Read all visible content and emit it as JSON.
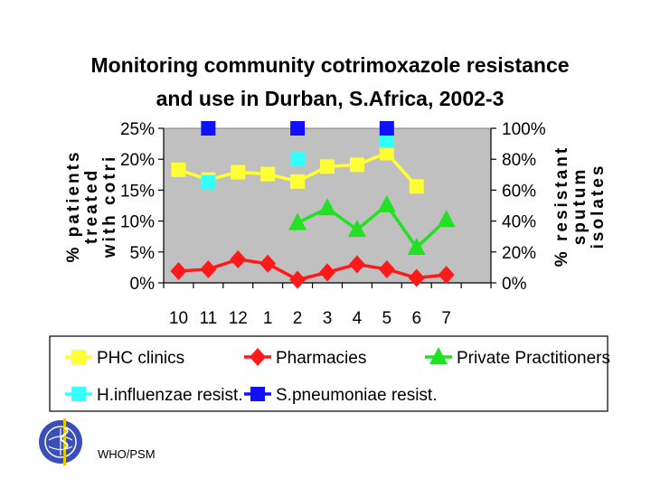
{
  "chart_data": {
    "type": "line",
    "title_lines": [
      "Monitoring community cotrimoxazole resistance",
      "and use in Durban, S.Africa, 2002-3"
    ],
    "categories": [
      "10",
      "11",
      "12",
      "1",
      "2",
      "3",
      "4",
      "5",
      "6",
      "7"
    ],
    "y_left": {
      "label_lines": [
        "% patients",
        "treated",
        "with cotri"
      ],
      "ticks": [
        "0%",
        "5%",
        "10%",
        "15%",
        "20%",
        "25%"
      ],
      "range": [
        0,
        25
      ]
    },
    "y_right": {
      "label_lines": [
        "% resistant",
        "sputum",
        "isolates"
      ],
      "ticks": [
        "0%",
        "20%",
        "40%",
        "60%",
        "80%",
        "100%"
      ],
      "range": [
        0,
        100
      ]
    },
    "series": [
      {
        "name": "PHC clinics",
        "axis": "left",
        "color": "#ffff33",
        "marker": "square",
        "line": true,
        "values": [
          18.3,
          16.7,
          17.9,
          17.6,
          16.4,
          18.8,
          19.1,
          21.0,
          15.6,
          null
        ]
      },
      {
        "name": "Pharmacies",
        "axis": "left",
        "color": "#ff1a1a",
        "marker": "diamond",
        "line": true,
        "values": [
          1.9,
          2.2,
          3.8,
          3.1,
          0.5,
          1.7,
          3.0,
          2.2,
          0.8,
          1.3
        ]
      },
      {
        "name": "Private Practitioners",
        "axis": "left",
        "color": "#22e022",
        "marker": "triangle",
        "line": true,
        "values": [
          null,
          null,
          null,
          null,
          9.7,
          12.1,
          8.6,
          12.6,
          5.7,
          10.2
        ]
      },
      {
        "name": "H.influenzae resist.",
        "axis": "right",
        "color": "#33ffff",
        "marker": "square",
        "line": false,
        "values": [
          null,
          65,
          null,
          null,
          80,
          null,
          null,
          92,
          null,
          null
        ]
      },
      {
        "name": "S.pneumoniae resist.",
        "axis": "right",
        "color": "#1010ff",
        "marker": "square",
        "line": false,
        "values": [
          null,
          100,
          null,
          null,
          100,
          null,
          null,
          100,
          null,
          null
        ]
      }
    ],
    "grid": false,
    "legend_position": "bottom"
  },
  "footer": {
    "label": "WHO/PSM",
    "left_logo": "who-emblem",
    "right_logo": "un-emblem"
  }
}
